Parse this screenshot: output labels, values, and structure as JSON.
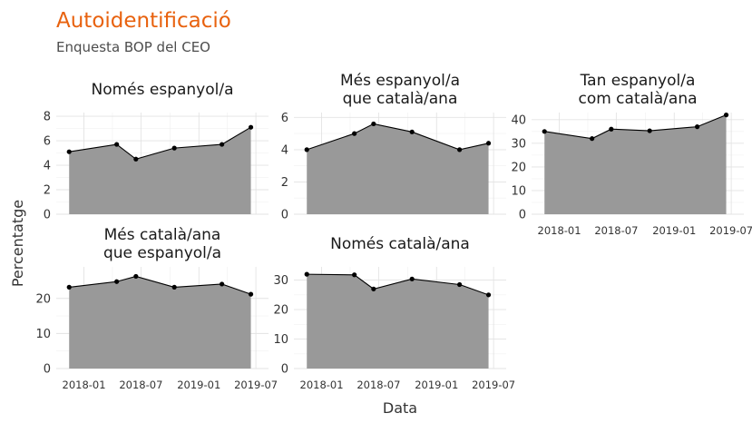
{
  "header": {
    "title": "Autoidentificació",
    "subtitle": "Enquesta BOP del CEO"
  },
  "chart_data": {
    "type": "area",
    "xlabel": "Data",
    "ylabel": "Percentatge",
    "x_ticks": [
      "2018-01",
      "2018-07",
      "2019-01",
      "2019-07"
    ],
    "grid": true,
    "dates": [
      "2017-11",
      "2018-04",
      "2018-06",
      "2018-10",
      "2019-03",
      "2019-06"
    ],
    "panels": [
      {
        "title_lines": [
          "Només espanyol/a"
        ],
        "values": [
          5.1,
          5.7,
          4.5,
          5.4,
          5.7,
          7.1
        ],
        "yticks": [
          0,
          2,
          4,
          6,
          8
        ],
        "ylim": [
          0,
          8.3
        ]
      },
      {
        "title_lines": [
          "Més espanyol/a",
          "que català/ana"
        ],
        "values": [
          4.0,
          5.0,
          5.6,
          5.1,
          4.0,
          4.4
        ],
        "yticks": [
          0,
          2,
          4,
          6
        ],
        "ylim": [
          0,
          6.3
        ]
      },
      {
        "title_lines": [
          "Tan espanyol/a",
          "com català/ana"
        ],
        "values": [
          35.0,
          32.0,
          36.0,
          35.3,
          37.0,
          42.0
        ],
        "yticks": [
          0,
          10,
          20,
          30,
          40
        ],
        "ylim": [
          0,
          43
        ]
      },
      {
        "title_lines": [
          "Més català/ana",
          "que espanyol/a"
        ],
        "values": [
          23.2,
          24.8,
          26.3,
          23.2,
          24.1,
          21.2
        ],
        "yticks": [
          0,
          10,
          20
        ],
        "ylim": [
          0,
          29
        ]
      },
      {
        "title_lines": [
          "Només català/ana"
        ],
        "values": [
          32.0,
          31.8,
          27.0,
          30.4,
          28.5,
          25.0
        ],
        "yticks": [
          0,
          10,
          20,
          30
        ],
        "ylim": [
          0,
          34.5
        ]
      }
    ]
  }
}
